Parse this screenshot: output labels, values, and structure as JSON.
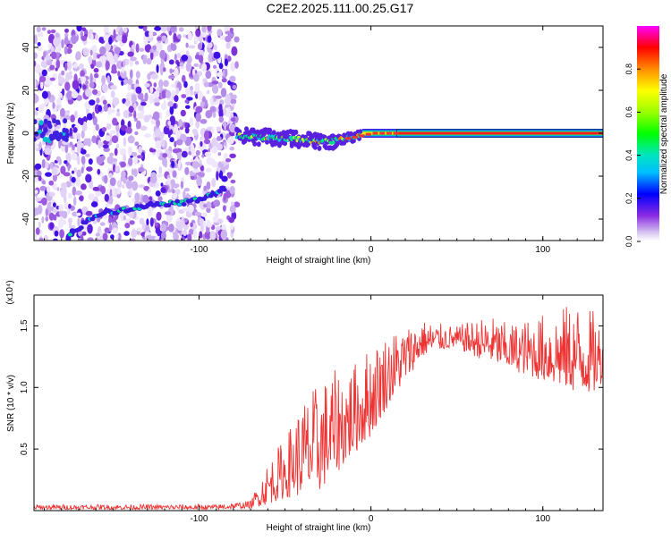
{
  "title": "C2E2.2025.111.00.25.G17",
  "chart_data": [
    {
      "type": "heatmap",
      "title": "C2E2.2025.111.00.25.G17",
      "xlabel": "Height of straight line (km)",
      "ylabel": "Frequency (Hz)",
      "xlim": [
        -196,
        135
      ],
      "ylim": [
        -50,
        50
      ],
      "x_ticks": [
        -100,
        0,
        100
      ],
      "y_ticks": [
        -40,
        -20,
        0,
        20,
        40
      ],
      "colorbar": {
        "label": "Normalized spectral amplitude",
        "range": [
          0,
          1
        ],
        "ticks": [
          0.0,
          0.2,
          0.4,
          0.6,
          0.8
        ]
      },
      "features": [
        {
          "name": "main line",
          "x_range": [
            -78,
            135
          ],
          "frequency": 0,
          "x": [
            -78,
            -60,
            -40,
            -25,
            -12,
            0,
            8,
            15,
            135
          ],
          "y": [
            -1,
            -2,
            -3,
            -4,
            -2,
            0,
            0,
            0,
            0
          ]
        },
        {
          "name": "low-frequency track",
          "x": [
            -175,
            -160,
            -140,
            -125,
            -105,
            -85
          ],
          "y": [
            -47,
            -38,
            -35,
            -33,
            -32,
            -26
          ]
        },
        {
          "name": "scatter noise",
          "x_range": [
            -196,
            -78
          ],
          "y_range": [
            -50,
            50
          ]
        }
      ]
    },
    {
      "type": "line",
      "xlabel": "Height of straight line (km)",
      "ylabel": "SNR (10 * v/v)",
      "scale_label": "(x10⁴)",
      "xlim": [
        -196,
        135
      ],
      "ylim": [
        0,
        1.75
      ],
      "x_ticks": [
        -100,
        0,
        100
      ],
      "y_ticks": [
        0.5,
        1.0,
        1.5
      ],
      "color": "#ee3333",
      "envelope": {
        "x": [
          -196,
          -90,
          -70,
          -60,
          -50,
          -40,
          -30,
          -20,
          -10,
          0,
          10,
          20,
          30,
          40,
          50,
          60,
          70,
          80,
          90,
          100,
          110,
          120,
          130,
          135
        ],
        "low": [
          0.01,
          0.01,
          0.02,
          0.05,
          0.1,
          0.12,
          0.15,
          0.3,
          0.45,
          0.6,
          0.85,
          1.05,
          1.25,
          1.3,
          1.32,
          1.25,
          1.2,
          1.15,
          1.1,
          1.05,
          1.0,
          0.95,
          0.95,
          1.05
        ],
        "high": [
          0.05,
          0.05,
          0.08,
          0.4,
          0.6,
          0.9,
          1.05,
          1.15,
          1.2,
          1.35,
          1.45,
          1.5,
          1.55,
          1.52,
          1.5,
          1.55,
          1.58,
          1.52,
          1.55,
          1.6,
          1.65,
          1.7,
          1.62,
          1.5
        ]
      }
    }
  ]
}
